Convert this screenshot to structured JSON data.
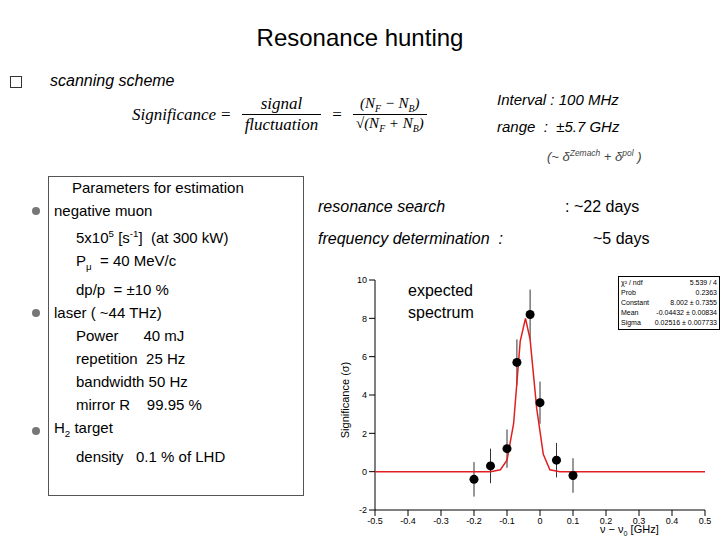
{
  "title": "Resonance hunting",
  "scheme": {
    "label": "scanning scheme",
    "formula": {
      "lhs": "Significance",
      "eq": "=",
      "fraction": [
        "signal",
        "fluctuation"
      ],
      "numerator": [
        {
          "t": "(N"
        },
        {
          "sub": "F"
        },
        {
          "t": " − N"
        },
        {
          "sub": "B"
        },
        {
          "t": ")"
        }
      ],
      "root": "√",
      "denominator": [
        {
          "t": "(N"
        },
        {
          "sub": "F"
        },
        {
          "t": " + N"
        },
        {
          "sub": "B"
        },
        {
          "t": ")"
        }
      ]
    }
  },
  "scan": [
    [
      {
        "t": "Interval : 100 MHz"
      }
    ],
    [
      {
        "t": "range  :  ±5.7 GHz"
      }
    ],
    [
      {
        "t": "(~ δ"
      },
      {
        "sup": "Zemach"
      },
      {
        "t": " + δ"
      },
      {
        "sup": "pol"
      },
      {
        "t": " )"
      }
    ]
  ],
  "parameters": {
    "heading": "Parameters for estimation",
    "groups": [
      {
        "name": [
          {
            "t": "negative muon"
          }
        ],
        "items": [
          [
            {
              "t": "5x10"
            },
            {
              "sup": "5"
            },
            {
              "t": " [s"
            },
            {
              "sup": "-1"
            },
            {
              "t": "]  (at 300 kW)"
            }
          ],
          [
            {
              "t": "P"
            },
            {
              "sub": "μ"
            },
            {
              "t": "  = 40 MeV/c"
            }
          ],
          [
            {
              "t": "dp/p  = ±10 %"
            }
          ]
        ]
      },
      {
        "name": [
          {
            "t": "laser ( ~44 THz)"
          }
        ],
        "items": [
          [
            {
              "t": "Power      40 mJ"
            }
          ],
          [
            {
              "t": "repetition  25 Hz"
            }
          ],
          [
            {
              "t": "bandwidth 50 Hz"
            }
          ],
          [
            {
              "t": "mirror R    99.95 %"
            }
          ]
        ]
      },
      {
        "name": [
          {
            "t": "H"
          },
          {
            "sub": "2"
          },
          {
            "t": " target"
          }
        ],
        "items": [
          [
            {
              "t": "density   0.1 % of LHD"
            }
          ]
        ]
      }
    ]
  },
  "schedule": [
    {
      "label": "resonance search",
      "value": ": ~22 days"
    },
    {
      "label": "frequency determination  :",
      "value": "~5 days"
    }
  ],
  "chart_data": {
    "type": "scatter",
    "annotation": "expected spectrum",
    "ylabel": "Significance (σ)",
    "xlabel": [
      {
        "t": "ν − ν"
      },
      {
        "sub": "0"
      },
      {
        "t": " [GHz]"
      }
    ],
    "xlim": [
      -0.5,
      0.5
    ],
    "xticks": [
      -0.5,
      -0.4,
      -0.3,
      -0.2,
      -0.1,
      0,
      0.1,
      0.2,
      0.3,
      0.4,
      0.5
    ],
    "ylim": [
      -2,
      10
    ],
    "yticks": [
      -2,
      0,
      2,
      4,
      6,
      8,
      10
    ],
    "marker": "circle",
    "color": "#000000",
    "x": [
      -0.2,
      -0.15,
      -0.1,
      -0.07,
      -0.03,
      0,
      0.05,
      0.1
    ],
    "values": [
      -0.4,
      0.3,
      1.2,
      5.7,
      8.2,
      3.6,
      0.6,
      -0.2
    ],
    "errors": [
      0.9,
      0.9,
      1.0,
      1.2,
      1.3,
      1.1,
      0.9,
      0.9
    ],
    "fit": {
      "color": "#e02020",
      "x": [
        -0.5,
        -0.15,
        -0.12,
        -0.1,
        -0.08,
        -0.06,
        -0.044,
        -0.03,
        -0.01,
        0.01,
        0.03,
        0.06,
        0.5
      ],
      "values": [
        0,
        0,
        0.1,
        0.6,
        2.5,
        6.8,
        8.0,
        6.9,
        3.3,
        0.9,
        0.1,
        0,
        0
      ]
    },
    "stats": [
      [
        "χ² / ndf",
        "5.539 / 4"
      ],
      [
        "Prob",
        "0.2363"
      ],
      [
        "Constant",
        "8.002 ± 0.7355"
      ],
      [
        "Mean",
        "-0.04432 ± 0.00834"
      ],
      [
        "Sigma",
        "0.02516 ± 0.007733"
      ]
    ]
  }
}
